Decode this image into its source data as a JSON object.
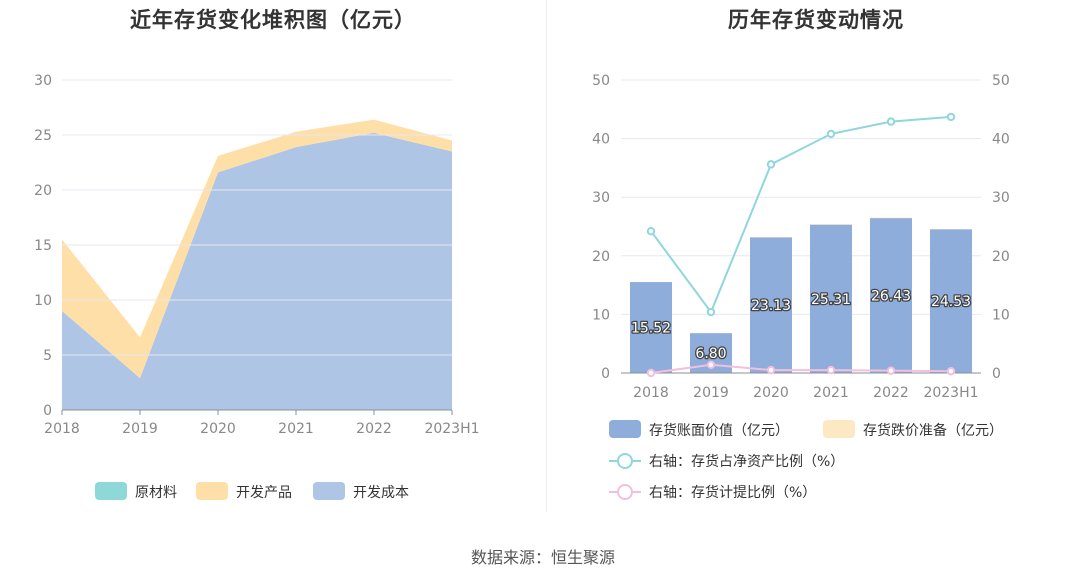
{
  "source_text": "数据来源：恒生聚源",
  "chart_data": [
    {
      "type": "area",
      "stacked": true,
      "title": "近年存货变化堆积图（亿元）",
      "categories": [
        "2018",
        "2019",
        "2020",
        "2021",
        "2022",
        "2023H1"
      ],
      "ylim": [
        0,
        30
      ],
      "yticks": [
        "0",
        "5",
        "10",
        "15",
        "20",
        "25",
        "30"
      ],
      "grid": true,
      "legend_position": "bottom",
      "series": [
        {
          "name": "原材料",
          "color": "#8ed9d8",
          "values": [
            0,
            0,
            0,
            0,
            0,
            0
          ]
        },
        {
          "name": "开发产品",
          "color": "#ffdfa8",
          "values": [
            6.5,
            3.7,
            1.5,
            1.4,
            1.2,
            1.0
          ]
        },
        {
          "name": "开发成本",
          "color": "#aec5e6",
          "values": [
            9.0,
            2.9,
            21.6,
            23.9,
            25.2,
            23.5
          ]
        }
      ]
    },
    {
      "type": "bar",
      "title": "历年存货变动情况",
      "categories": [
        "2018",
        "2019",
        "2020",
        "2021",
        "2022",
        "2023H1"
      ],
      "ylim": [
        0,
        50
      ],
      "yticks": [
        "0",
        "10",
        "20",
        "30",
        "40",
        "50"
      ],
      "y2lim": [
        0,
        50
      ],
      "y2ticks": [
        "0",
        "10",
        "20",
        "30",
        "40",
        "50"
      ],
      "grid": true,
      "legend_position": "bottom",
      "bar_series": [
        {
          "name": "存货账面价值（亿元）",
          "color": "#8eaddb",
          "values": [
            15.52,
            6.8,
            23.13,
            25.31,
            26.43,
            24.53
          ],
          "labels": [
            "15.52",
            "6.80",
            "23.13",
            "25.31",
            "26.43",
            "24.53"
          ]
        },
        {
          "name": "存货跌价准备（亿元）",
          "color": "#fde8c4",
          "values": [
            0,
            0,
            0.1,
            0.1,
            0.1,
            0.05
          ]
        }
      ],
      "line_series": [
        {
          "name": "右轴：存货占净资产比例（%）",
          "color": "#8fd7dc",
          "values": [
            24.2,
            10.4,
            35.6,
            40.8,
            42.9,
            43.7
          ]
        },
        {
          "name": "右轴：存货计提比例（%）",
          "color": "#f3bfdc",
          "values": [
            0.0,
            1.4,
            0.5,
            0.5,
            0.4,
            0.3
          ]
        }
      ]
    }
  ]
}
